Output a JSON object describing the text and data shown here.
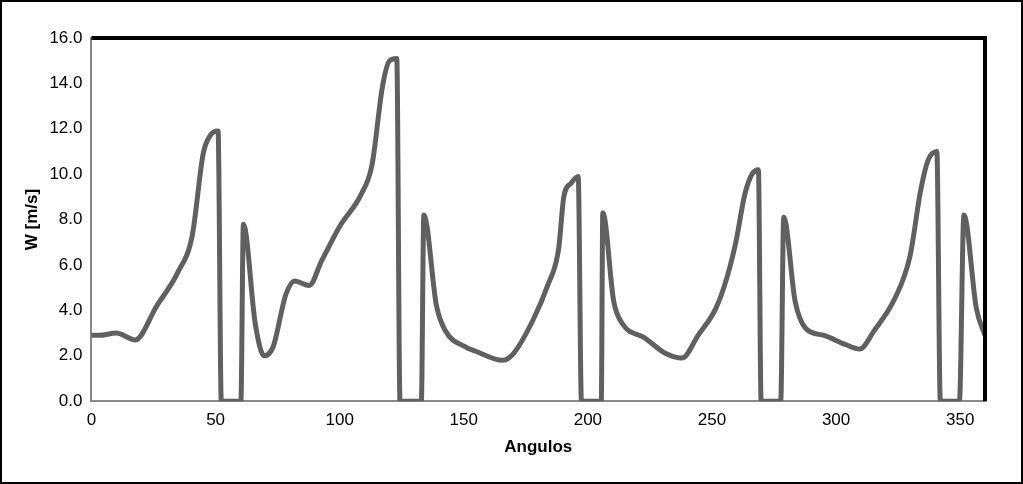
{
  "chart_data": {
    "type": "line",
    "xlabel": "Angulos",
    "ylabel": "W [m/s]",
    "xlim": [
      0,
      360
    ],
    "xticks": [
      0,
      50,
      100,
      150,
      200,
      250,
      300,
      350
    ],
    "ylim": [
      0,
      16
    ],
    "yticks": [
      {
        "value": 0,
        "label": "0.0"
      },
      {
        "value": 2,
        "label": "2.0"
      },
      {
        "value": 4,
        "label": "4.0"
      },
      {
        "value": 6,
        "label": "6.0"
      },
      {
        "value": 8,
        "label": "8.0"
      },
      {
        "value": 10,
        "label": "10.0"
      },
      {
        "value": 12,
        "label": "12.0"
      },
      {
        "value": 14,
        "label": "14.0"
      },
      {
        "value": 16,
        "label": "16.0"
      }
    ],
    "grid": false,
    "legend": false,
    "marker": "none",
    "line_style": "solid",
    "series": [
      {
        "color": "#606060",
        "x": [
          0,
          3,
          10,
          17.6,
          26.3,
          34.9,
          40.6,
          45,
          47.8,
          51,
          52.3,
          60.2,
          61.2,
          66,
          69.6,
          73.2,
          78.3,
          81.9,
          87.7,
          92.8,
          100,
          108.6,
          113,
          117.3,
          120.1,
          123,
          124.3,
          132.9,
          133.9,
          139,
          142.6,
          150.5,
          154.8,
          165.7,
          170,
          178,
          183.8,
          188.2,
          190.3,
          193.2,
          196.1,
          197.4,
          205.4,
          206,
          210.4,
          214,
          222.7,
          231.4,
          237.9,
          244.4,
          251.6,
          255.9,
          259.6,
          263.2,
          266.1,
          268.7,
          269.8,
          277.7,
          278.9,
          283.5,
          287.8,
          295.1,
          303.7,
          309.5,
          315.3,
          324,
          329.8,
          334.1,
          337,
          340.6,
          342,
          349.7,
          351.5,
          356.5,
          360
        ],
        "values": [
          2.9,
          2.9,
          3.0,
          2.7,
          4.2,
          5.7,
          7.3,
          10.9,
          11.7,
          11.9,
          0,
          0,
          7.8,
          3.4,
          2.0,
          2.4,
          4.7,
          5.3,
          5.1,
          6.2,
          7.7,
          9.1,
          10.4,
          13.9,
          15.0,
          15.1,
          0,
          0,
          8.2,
          4.2,
          3.1,
          2.4,
          2.2,
          1.8,
          2.1,
          3.6,
          5.1,
          6.7,
          9.0,
          9.6,
          9.9,
          0,
          0,
          8.3,
          4.4,
          3.4,
          2.8,
          2.1,
          1.9,
          2.9,
          4.1,
          5.4,
          7.0,
          9.1,
          10.0,
          10.2,
          0,
          0,
          8.1,
          4.4,
          3.2,
          2.9,
          2.5,
          2.3,
          3.1,
          4.6,
          6.4,
          9.3,
          10.6,
          11.0,
          0,
          0,
          8.2,
          4.1,
          2.9
        ]
      }
    ]
  }
}
